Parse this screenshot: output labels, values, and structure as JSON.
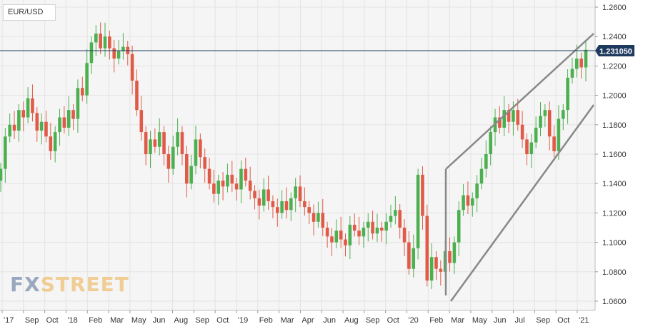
{
  "symbol": "EUR/USD",
  "logo": {
    "part1": "FX",
    "part2": "STREET"
  },
  "colors": {
    "up": "#4caf50",
    "down": "#e05a47",
    "channel": "#888888",
    "price_line": "#1f3a5f",
    "grid": "#e3e3e3"
  },
  "chart_data": {
    "type": "candlestick",
    "title": "",
    "ylim": [
      1.055,
      1.265
    ],
    "y_ticks": [
      "1.2600",
      "1.2400",
      "1.2200",
      "1.2000",
      "1.1800",
      "1.1600",
      "1.1400",
      "1.1200",
      "1.1000",
      "1.0800",
      "1.0600"
    ],
    "x_labels": [
      "'17",
      "Sep",
      "Oct",
      "'18",
      "Feb",
      "Mar",
      "May",
      "Jun",
      "Aug",
      "Sep",
      "Oct",
      "'19",
      "Feb",
      "Mar",
      "Apr",
      "Jun",
      "Aug",
      "Sep",
      "Oct",
      "'20",
      "Feb",
      "Mar",
      "May",
      "Jun",
      "Jul",
      "Sep",
      "Oct",
      "'21"
    ],
    "current_price": {
      "value": 1.23105,
      "label": "1.231050"
    },
    "closes": [
      1.15,
      1.172,
      1.18,
      1.176,
      1.19,
      1.185,
      1.198,
      1.188,
      1.176,
      1.182,
      1.172,
      1.162,
      1.175,
      1.185,
      1.178,
      1.19,
      1.184,
      1.205,
      1.2,
      1.222,
      1.236,
      1.242,
      1.232,
      1.24,
      1.232,
      1.225,
      1.23,
      1.233,
      1.228,
      1.21,
      1.19,
      1.175,
      1.16,
      1.17,
      1.165,
      1.175,
      1.16,
      1.15,
      1.165,
      1.175,
      1.16,
      1.14,
      1.152,
      1.17,
      1.158,
      1.15,
      1.14,
      1.133,
      1.142,
      1.138,
      1.146,
      1.14,
      1.136,
      1.15,
      1.142,
      1.135,
      1.13,
      1.125,
      1.136,
      1.128,
      1.124,
      1.12,
      1.128,
      1.122,
      1.13,
      1.138,
      1.128,
      1.124,
      1.12,
      1.114,
      1.12,
      1.11,
      1.104,
      1.1,
      1.108,
      1.102,
      1.098,
      1.112,
      1.108,
      1.104,
      1.11,
      1.114,
      1.106,
      1.11,
      1.108,
      1.114,
      1.118,
      1.122,
      1.11,
      1.1,
      1.082,
      1.096,
      1.146,
      1.118,
      1.074,
      1.09,
      1.082,
      1.08,
      1.094,
      1.086,
      1.1,
      1.122,
      1.132,
      1.125,
      1.13,
      1.14,
      1.15,
      1.16,
      1.175,
      1.185,
      1.178,
      1.19,
      1.182,
      1.19,
      1.18,
      1.17,
      1.16,
      1.168,
      1.178,
      1.186,
      1.19,
      1.172,
      1.162,
      1.184,
      1.19,
      1.212,
      1.218,
      1.225,
      1.219,
      1.231
    ]
  }
}
